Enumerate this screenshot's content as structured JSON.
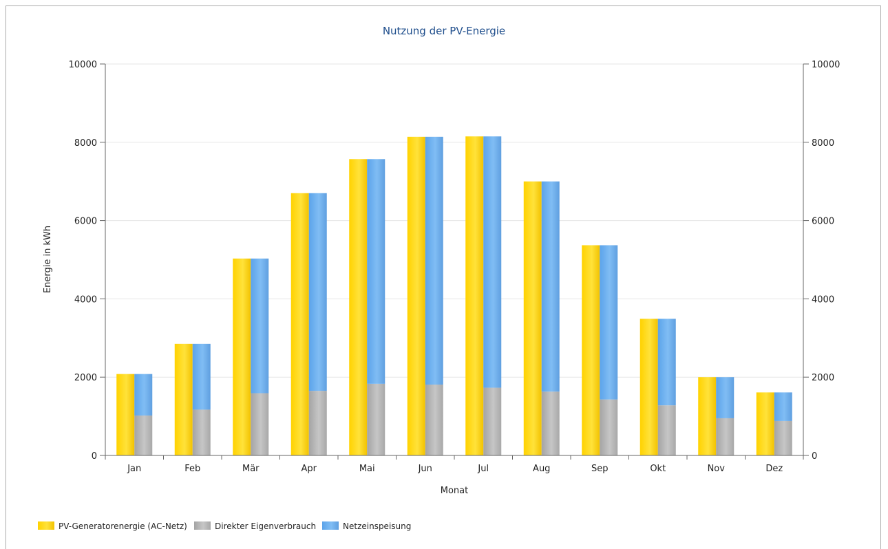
{
  "chart_data": {
    "type": "bar",
    "title": "Nutzung der PV-Energie",
    "xlabel": "Monat",
    "ylabel": "Energie in kWh",
    "ylim": [
      0,
      10000
    ],
    "yticks": [
      0,
      2000,
      4000,
      6000,
      8000,
      10000
    ],
    "categories": [
      "Jan",
      "Feb",
      "Mär",
      "Apr",
      "Mai",
      "Jun",
      "Jul",
      "Aug",
      "Sep",
      "Okt",
      "Nov",
      "Dez"
    ],
    "series": [
      {
        "name": "PV-Generatorenergie (AC-Netz)",
        "stack": "a",
        "color": "#ffd700",
        "values": [
          2080,
          2850,
          5030,
          6700,
          7570,
          8140,
          8150,
          7000,
          5370,
          3490,
          2000,
          1610
        ]
      },
      {
        "name": "Direkter Eigenverbrauch",
        "stack": "b",
        "color": "#b0b0b0",
        "values": [
          1020,
          1170,
          1590,
          1650,
          1830,
          1810,
          1730,
          1630,
          1430,
          1280,
          950,
          880
        ]
      },
      {
        "name": "Netzeinspeisung",
        "stack": "b",
        "color": "#6aaef0",
        "values": [
          1060,
          1680,
          3440,
          5050,
          5740,
          6330,
          6420,
          5370,
          3940,
          2210,
          1050,
          730
        ]
      }
    ],
    "grid": true,
    "secondary_y_axis": true,
    "legend_position": "bottom-left"
  }
}
